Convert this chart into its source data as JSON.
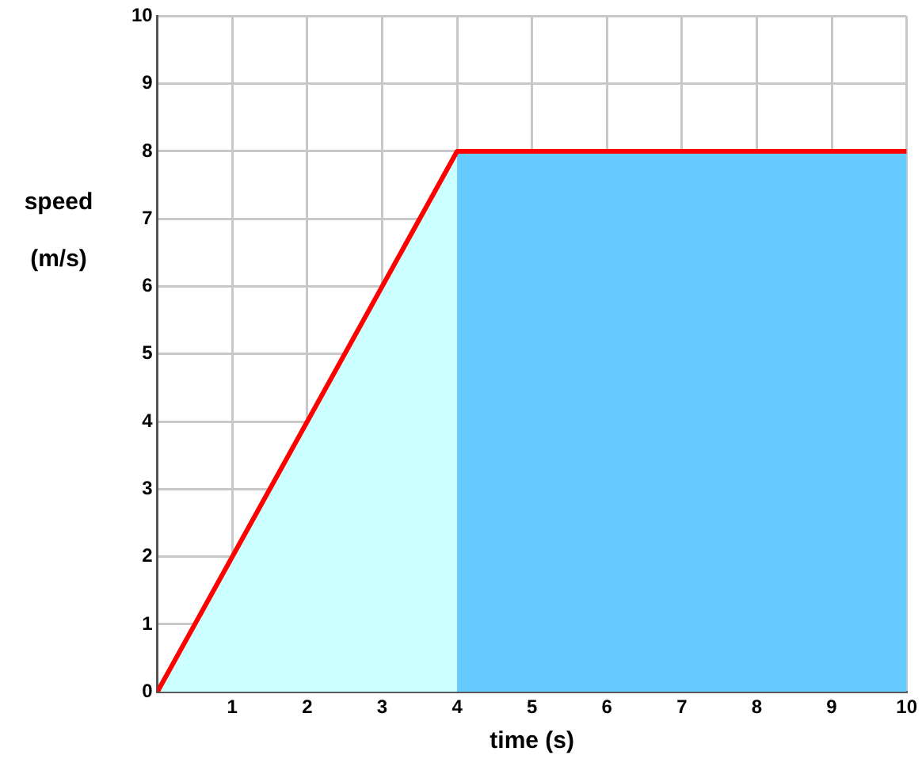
{
  "chart_data": {
    "type": "line",
    "xlabel": "time (s)",
    "ylabel": "speed (m/s)",
    "series": [
      {
        "type": "area",
        "color": "#ccffff",
        "x": [
          0,
          4
        ],
        "values": [
          0,
          8
        ]
      },
      {
        "type": "area",
        "color": "#66ccff",
        "x": [
          4,
          10
        ],
        "values": [
          8,
          8
        ]
      },
      {
        "type": "line",
        "color": "#ff0000",
        "x": [
          0,
          4,
          10
        ],
        "values": [
          0,
          8,
          8
        ]
      }
    ],
    "xlim": [
      0,
      10
    ],
    "xticks": [
      {
        "value": 0,
        "label": null
      },
      1,
      2,
      3,
      4,
      5,
      6,
      7,
      8,
      9,
      10
    ],
    "ylim": [
      0,
      10
    ],
    "yticks": [
      0,
      1,
      2,
      3,
      4,
      5,
      6,
      7,
      8,
      9,
      10
    ],
    "grid": true,
    "marker": "none",
    "line_style": "solid"
  }
}
